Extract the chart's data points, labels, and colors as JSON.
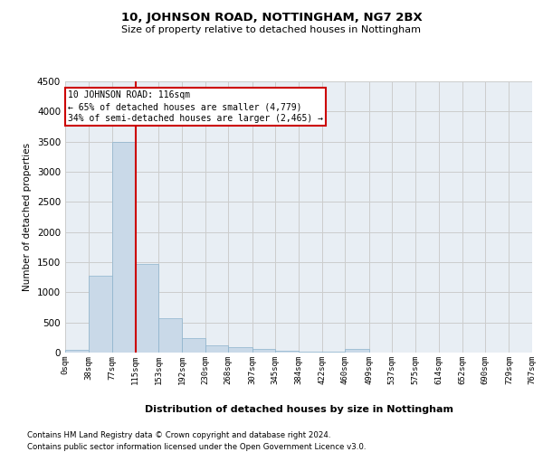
{
  "title": "10, JOHNSON ROAD, NOTTINGHAM, NG7 2BX",
  "subtitle": "Size of property relative to detached houses in Nottingham",
  "xlabel": "Distribution of detached houses by size in Nottingham",
  "ylabel": "Number of detached properties",
  "footnote1": "Contains HM Land Registry data © Crown copyright and database right 2024.",
  "footnote2": "Contains public sector information licensed under the Open Government Licence v3.0.",
  "bar_edges": [
    0,
    38,
    77,
    115,
    153,
    192,
    230,
    268,
    307,
    345,
    384,
    422,
    460,
    499,
    537,
    575,
    614,
    652,
    690,
    729,
    767
  ],
  "bar_heights": [
    40,
    1280,
    3500,
    1470,
    575,
    240,
    115,
    85,
    55,
    30,
    20,
    10,
    55,
    0,
    0,
    0,
    0,
    0,
    0,
    0
  ],
  "bar_color": "#c9d9e8",
  "bar_edge_color": "#8cb3cc",
  "grid_color": "#cccccc",
  "bg_color": "#e8eef4",
  "property_line_x": 116,
  "property_line_color": "#cc0000",
  "ylim": [
    0,
    4500
  ],
  "xlim": [
    0,
    767
  ],
  "annotation_text": "10 JOHNSON ROAD: 116sqm\n← 65% of detached houses are smaller (4,779)\n34% of semi-detached houses are larger (2,465) →",
  "annotation_box_color": "#cc0000",
  "tick_labels": [
    "0sqm",
    "38sqm",
    "77sqm",
    "115sqm",
    "153sqm",
    "192sqm",
    "230sqm",
    "268sqm",
    "307sqm",
    "345sqm",
    "384sqm",
    "422sqm",
    "460sqm",
    "499sqm",
    "537sqm",
    "575sqm",
    "614sqm",
    "652sqm",
    "690sqm",
    "729sqm",
    "767sqm"
  ]
}
